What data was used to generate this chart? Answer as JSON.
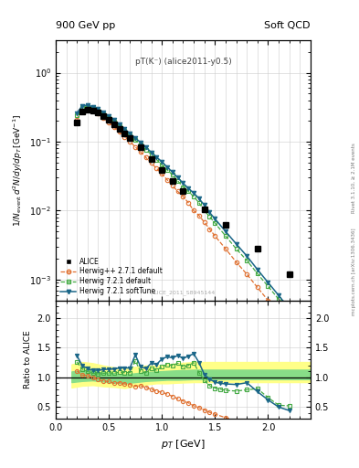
{
  "title_top": "900 GeV pp",
  "title_right": "Soft QCD",
  "plot_label": "pT(K⁻) (alice2011-y0.5)",
  "watermark": "ALICE_2011_S8945144",
  "right_label_top": "Rivet 3.1.10, ≥ 2.1M events",
  "right_label_bot": "[arXiv:1306.3436]",
  "mcplots_label": "mcplots.cern.ch",
  "xlabel": "$p_T$ [GeV]",
  "ylabel_main": "$1/N_{\\rm event}\\,d^2N/dy/dp_T\\,[{\\rm GeV}^{-1}]$",
  "ylabel_ratio": "Ratio to ALICE",
  "xlim": [
    0.0,
    2.4
  ],
  "ylim_main": [
    0.0005,
    3.0
  ],
  "ylim_ratio": [
    0.3,
    2.3
  ],
  "yticks_ratio": [
    0.5,
    1.0,
    1.5,
    2.0
  ],
  "alice_x": [
    0.2,
    0.25,
    0.3,
    0.35,
    0.4,
    0.45,
    0.5,
    0.55,
    0.6,
    0.65,
    0.7,
    0.8,
    0.9,
    1.0,
    1.1,
    1.2,
    1.4,
    1.6,
    1.9,
    2.2
  ],
  "alice_y": [
    0.19,
    0.275,
    0.295,
    0.285,
    0.265,
    0.235,
    0.205,
    0.18,
    0.152,
    0.132,
    0.113,
    0.082,
    0.056,
    0.039,
    0.027,
    0.019,
    0.0105,
    0.0062,
    0.0028,
    0.0012
  ],
  "alice_ey": [
    0.012,
    0.014,
    0.015,
    0.013,
    0.012,
    0.01,
    0.009,
    0.008,
    0.007,
    0.006,
    0.005,
    0.004,
    0.003,
    0.002,
    0.0015,
    0.001,
    0.0007,
    0.0004,
    0.0002,
    0.0001
  ],
  "alice_color": "#000000",
  "hpp_x": [
    0.2,
    0.25,
    0.3,
    0.35,
    0.4,
    0.45,
    0.5,
    0.55,
    0.6,
    0.65,
    0.7,
    0.75,
    0.8,
    0.85,
    0.9,
    0.95,
    1.0,
    1.05,
    1.1,
    1.15,
    1.2,
    1.25,
    1.3,
    1.35,
    1.4,
    1.45,
    1.5,
    1.6,
    1.7,
    1.8,
    1.9,
    2.0,
    2.1,
    2.2
  ],
  "hpp_y": [
    0.21,
    0.285,
    0.305,
    0.285,
    0.255,
    0.222,
    0.192,
    0.162,
    0.138,
    0.118,
    0.1,
    0.084,
    0.071,
    0.059,
    0.049,
    0.041,
    0.034,
    0.028,
    0.023,
    0.019,
    0.016,
    0.013,
    0.01,
    0.0085,
    0.0068,
    0.0054,
    0.0043,
    0.0028,
    0.0018,
    0.0012,
    0.00077,
    0.0005,
    0.00032,
    0.00021
  ],
  "hpp_color": "#e07030",
  "h721d_x": [
    0.2,
    0.25,
    0.3,
    0.35,
    0.4,
    0.45,
    0.5,
    0.55,
    0.6,
    0.65,
    0.7,
    0.75,
    0.8,
    0.85,
    0.9,
    0.95,
    1.0,
    1.05,
    1.1,
    1.15,
    1.2,
    1.25,
    1.3,
    1.35,
    1.4,
    1.45,
    1.5,
    1.6,
    1.7,
    1.8,
    1.9,
    2.0,
    2.1,
    2.2
  ],
  "h721d_y": [
    0.24,
    0.315,
    0.325,
    0.305,
    0.28,
    0.252,
    0.222,
    0.193,
    0.166,
    0.143,
    0.122,
    0.105,
    0.09,
    0.077,
    0.065,
    0.055,
    0.046,
    0.039,
    0.033,
    0.027,
    0.022,
    0.019,
    0.016,
    0.013,
    0.01,
    0.0082,
    0.0066,
    0.0043,
    0.0028,
    0.0019,
    0.00122,
    0.0008,
    0.00052,
    0.00034
  ],
  "h721d_color": "#44aa44",
  "h721s_x": [
    0.2,
    0.25,
    0.3,
    0.35,
    0.4,
    0.45,
    0.5,
    0.55,
    0.6,
    0.65,
    0.7,
    0.75,
    0.8,
    0.85,
    0.9,
    0.95,
    1.0,
    1.05,
    1.1,
    1.15,
    1.2,
    1.25,
    1.3,
    1.35,
    1.4,
    1.45,
    1.5,
    1.6,
    1.7,
    1.8,
    1.9,
    2.0,
    2.1,
    2.2
  ],
  "h721s_y": [
    0.26,
    0.33,
    0.34,
    0.32,
    0.296,
    0.265,
    0.235,
    0.205,
    0.177,
    0.153,
    0.131,
    0.113,
    0.097,
    0.083,
    0.07,
    0.06,
    0.051,
    0.043,
    0.036,
    0.03,
    0.025,
    0.021,
    0.018,
    0.015,
    0.012,
    0.0094,
    0.0076,
    0.005,
    0.0033,
    0.0022,
    0.0014,
    0.00091,
    0.00059,
    0.00038
  ],
  "h721s_color": "#1a6688",
  "band_x": [
    0.15,
    0.25,
    0.35,
    0.45,
    0.55,
    0.65,
    0.75,
    0.85,
    0.95,
    1.05,
    1.15,
    1.3,
    1.5,
    1.75,
    2.1,
    2.4
  ],
  "band_ylo": [
    0.83,
    0.86,
    0.87,
    0.85,
    0.84,
    0.82,
    0.85,
    0.88,
    0.9,
    0.9,
    0.91,
    0.92,
    0.92,
    0.92,
    0.92,
    0.92
  ],
  "band_yhi": [
    1.22,
    1.26,
    1.24,
    1.2,
    1.17,
    1.14,
    1.18,
    1.2,
    1.2,
    1.22,
    1.24,
    1.26,
    1.26,
    1.26,
    1.26,
    1.26
  ],
  "band_glo": [
    0.92,
    0.94,
    0.95,
    0.93,
    0.91,
    0.9,
    0.92,
    0.94,
    0.95,
    0.96,
    0.96,
    0.97,
    0.97,
    0.97,
    0.97,
    0.97
  ],
  "band_ghi": [
    1.1,
    1.12,
    1.11,
    1.08,
    1.07,
    1.05,
    1.07,
    1.09,
    1.1,
    1.11,
    1.12,
    1.13,
    1.13,
    1.13,
    1.13,
    1.13
  ],
  "ratio_hpp_x": [
    0.2,
    0.25,
    0.3,
    0.35,
    0.4,
    0.45,
    0.5,
    0.55,
    0.6,
    0.65,
    0.7,
    0.75,
    0.8,
    0.85,
    0.9,
    0.95,
    1.0,
    1.05,
    1.1,
    1.15,
    1.2,
    1.25,
    1.3,
    1.35,
    1.4,
    1.45,
    1.5,
    1.6,
    1.7,
    1.8,
    1.9,
    2.0,
    2.1
  ],
  "ratio_hpp_y": [
    1.11,
    1.04,
    1.03,
    1.0,
    0.96,
    0.94,
    0.93,
    0.9,
    0.91,
    0.89,
    0.88,
    0.85,
    0.86,
    0.83,
    0.8,
    0.77,
    0.75,
    0.72,
    0.68,
    0.64,
    0.6,
    0.57,
    0.52,
    0.49,
    0.45,
    0.41,
    0.38,
    0.32,
    0.27,
    0.22,
    0.18,
    0.14,
    0.1
  ],
  "ratio_h721d_x": [
    0.2,
    0.25,
    0.3,
    0.35,
    0.4,
    0.45,
    0.5,
    0.55,
    0.6,
    0.65,
    0.7,
    0.75,
    0.8,
    0.85,
    0.9,
    0.95,
    1.0,
    1.05,
    1.1,
    1.15,
    1.2,
    1.25,
    1.3,
    1.35,
    1.4,
    1.45,
    1.5,
    1.55,
    1.6,
    1.7,
    1.8,
    1.9,
    2.0,
    2.1,
    2.2
  ],
  "ratio_h721d_y": [
    1.26,
    1.14,
    1.1,
    1.07,
    1.06,
    1.07,
    1.08,
    1.07,
    1.09,
    1.08,
    1.08,
    1.28,
    1.1,
    1.08,
    1.16,
    1.12,
    1.18,
    1.22,
    1.2,
    1.24,
    1.18,
    1.2,
    1.25,
    1.08,
    0.95,
    0.86,
    0.82,
    0.8,
    0.78,
    0.77,
    0.79,
    0.81,
    0.66,
    0.53,
    0.52
  ],
  "ratio_h721s_x": [
    0.2,
    0.25,
    0.3,
    0.35,
    0.4,
    0.45,
    0.5,
    0.55,
    0.6,
    0.65,
    0.7,
    0.75,
    0.8,
    0.85,
    0.9,
    0.95,
    1.0,
    1.05,
    1.1,
    1.15,
    1.2,
    1.25,
    1.3,
    1.35,
    1.4,
    1.45,
    1.5,
    1.55,
    1.6,
    1.7,
    1.8,
    1.9,
    2.0,
    2.1,
    2.2
  ],
  "ratio_h721s_y": [
    1.37,
    1.2,
    1.15,
    1.12,
    1.12,
    1.13,
    1.14,
    1.14,
    1.16,
    1.16,
    1.16,
    1.38,
    1.18,
    1.15,
    1.24,
    1.22,
    1.31,
    1.35,
    1.33,
    1.37,
    1.32,
    1.36,
    1.4,
    1.25,
    1.05,
    0.97,
    0.92,
    0.9,
    0.89,
    0.88,
    0.91,
    0.76,
    0.62,
    0.5,
    0.44
  ],
  "bg_color": "#ffffff",
  "grid_color": "#cccccc"
}
